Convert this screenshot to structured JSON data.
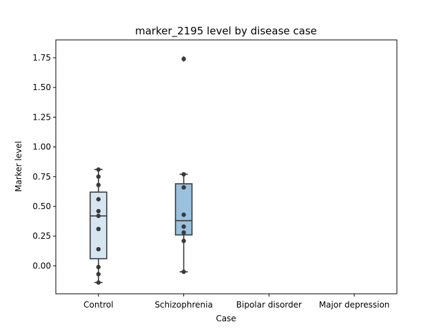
{
  "chart_data": {
    "type": "box",
    "title": "marker_2195 level by disease case",
    "xlabel": "Case",
    "ylabel": "Marker level",
    "categories": [
      "Control",
      "Schizophrenia",
      "Bipolar disorder",
      "Major depression"
    ],
    "ylim": [
      -0.235,
      1.9
    ],
    "yticks": [
      "0.00",
      "0.25",
      "0.50",
      "0.75",
      "1.00",
      "1.25",
      "1.50",
      "1.75"
    ],
    "ytick_values": [
      0.0,
      0.25,
      0.5,
      0.75,
      1.0,
      1.25,
      1.5,
      1.75
    ],
    "grid": false,
    "legend": "none",
    "colors": {
      "box_fills": [
        "#d6e5f2",
        "#9ac1dd"
      ],
      "box_edge": "#3a3a3a",
      "points": "#3a3a3a"
    },
    "boxes": [
      {
        "category": "Control",
        "q1": 0.06,
        "median": 0.42,
        "q3": 0.62,
        "whisker_low": -0.14,
        "whisker_high": 0.81,
        "outliers": []
      },
      {
        "category": "Schizophrenia",
        "q1": 0.26,
        "median": 0.38,
        "q3": 0.69,
        "whisker_low": -0.05,
        "whisker_high": 0.77,
        "outliers": [
          1.74
        ]
      }
    ],
    "points": [
      {
        "category": "Control",
        "values": [
          0.81,
          0.75,
          0.68,
          0.56,
          0.46,
          0.42,
          0.31,
          0.14,
          -0.01,
          -0.07,
          -0.14
        ]
      },
      {
        "category": "Schizophrenia",
        "values": [
          1.74,
          0.77,
          0.66,
          0.43,
          0.33,
          0.28,
          0.21,
          -0.05
        ]
      }
    ]
  }
}
